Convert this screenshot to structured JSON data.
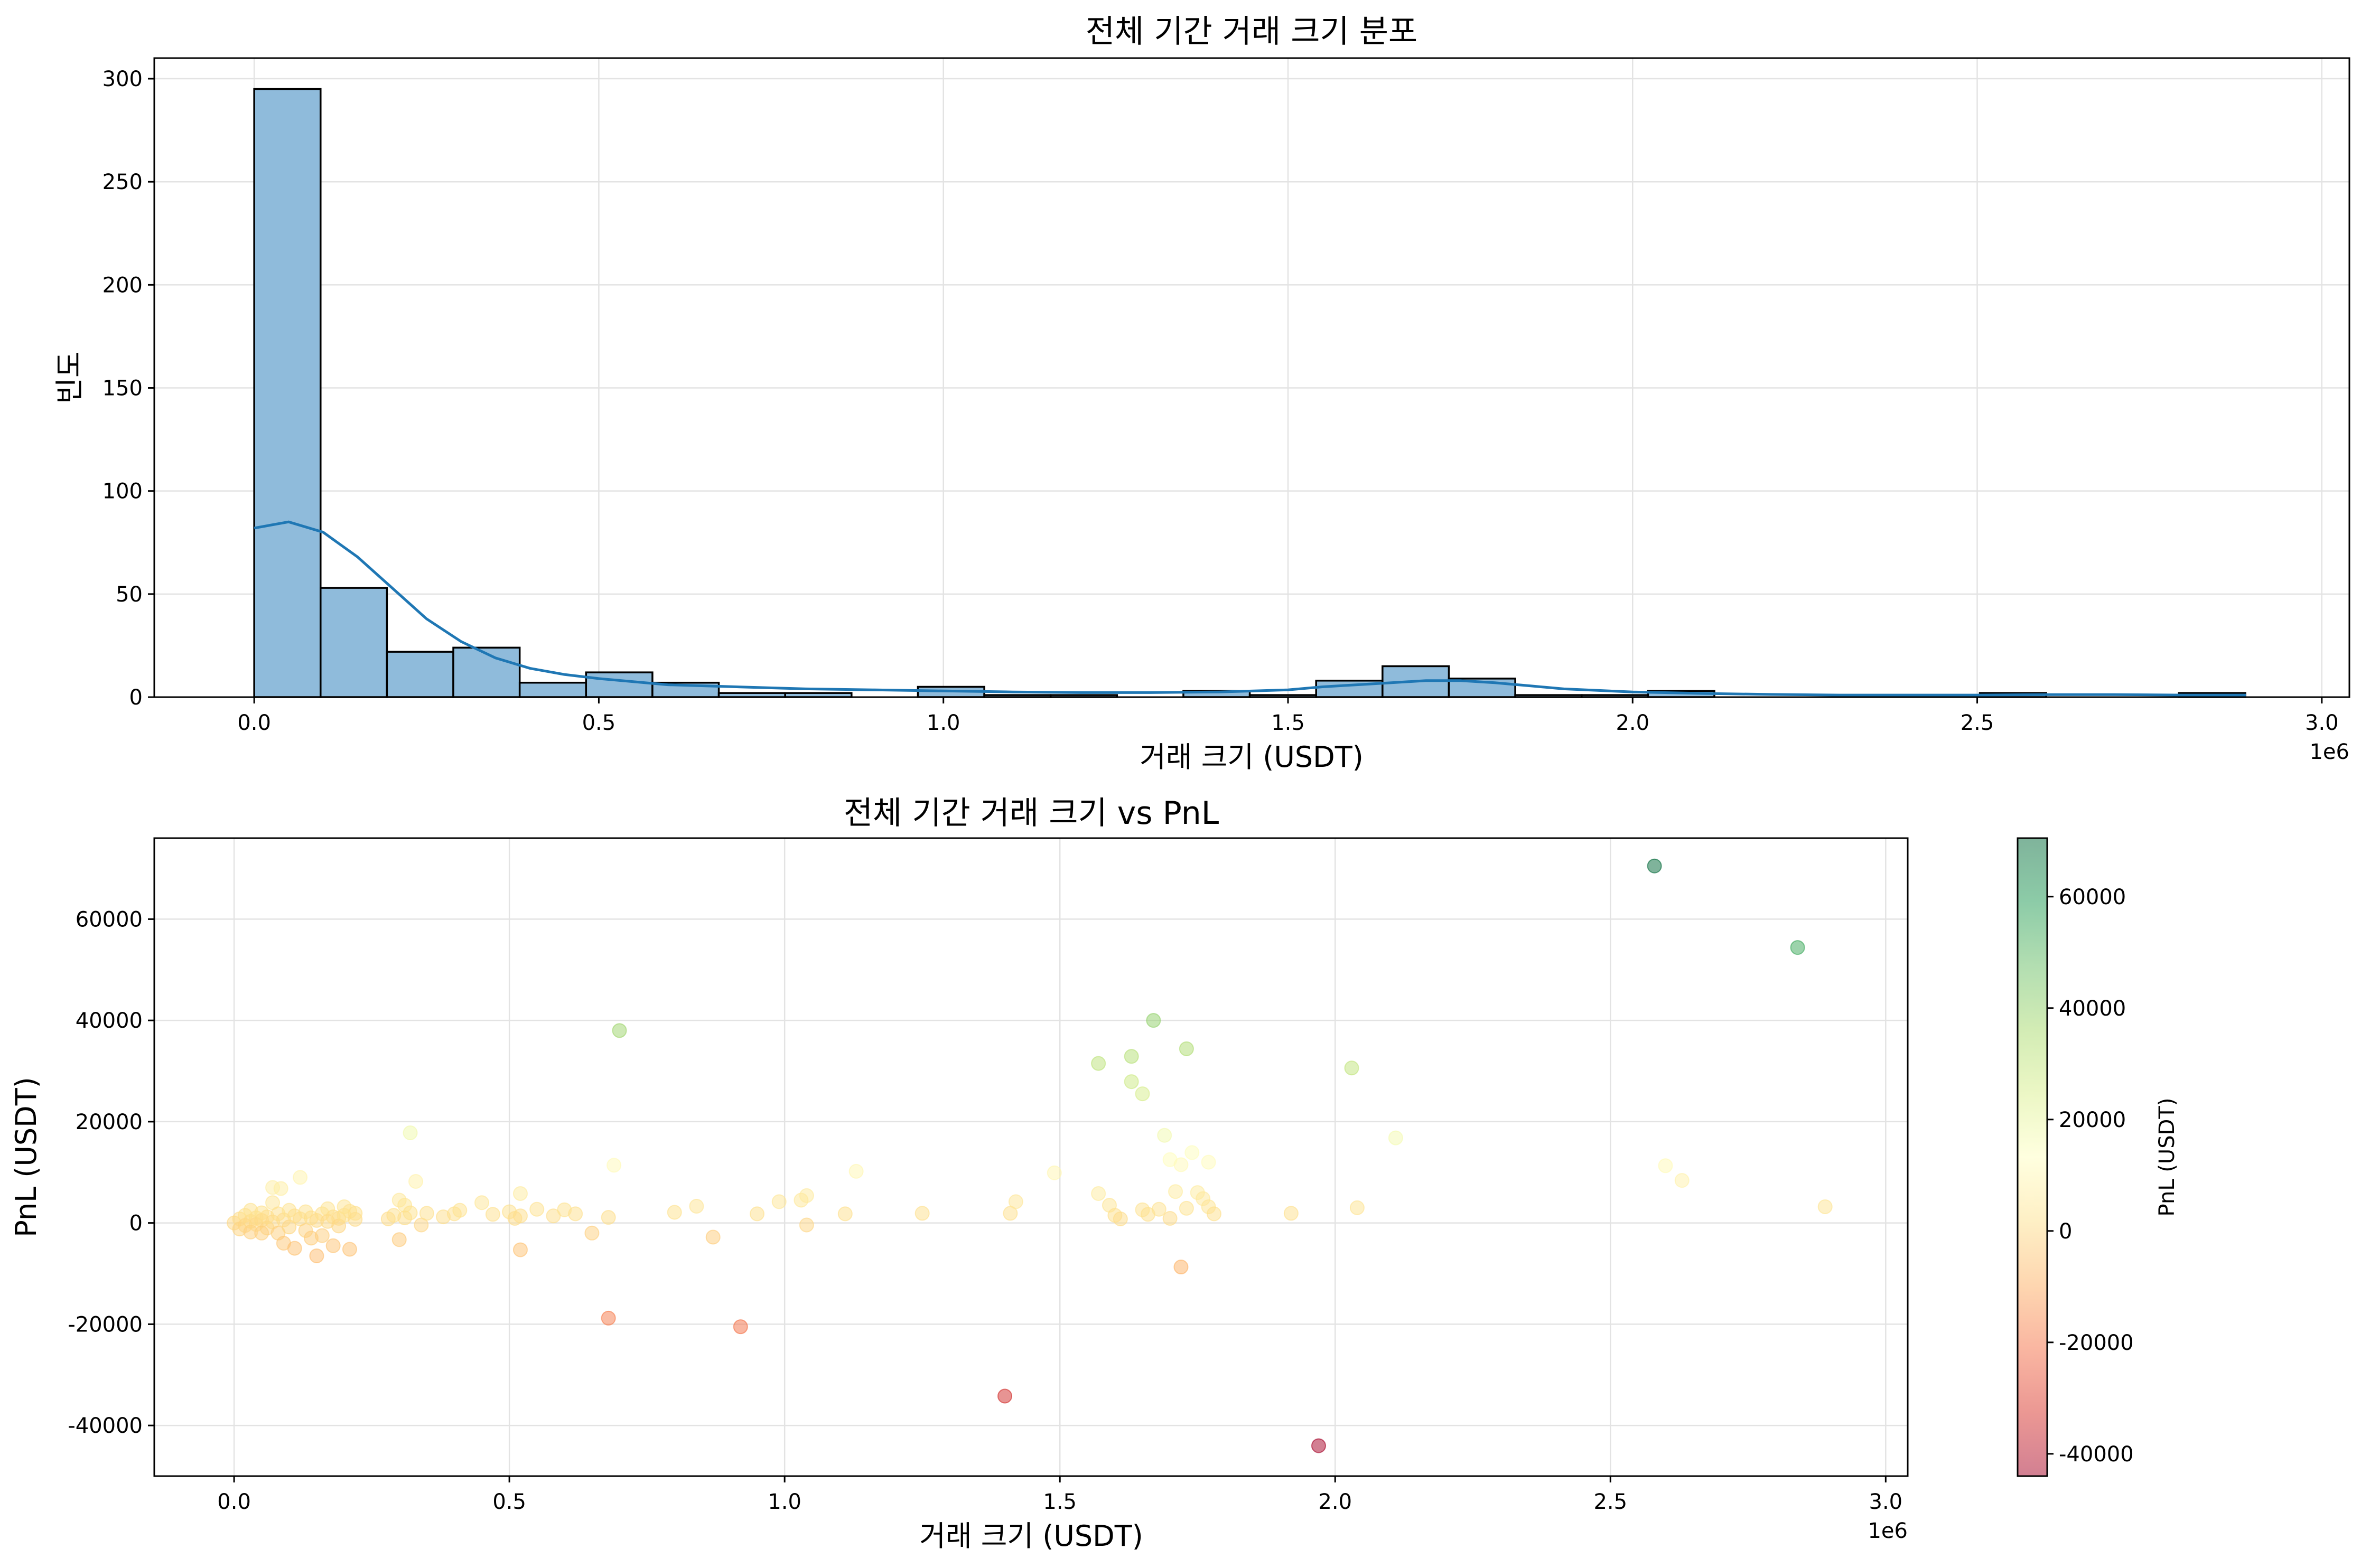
{
  "chart_data": [
    {
      "type": "bar",
      "title": "전체 기간 거래 크기 분포",
      "xlabel": "거래 크기 (USDT)",
      "ylabel": "빈도",
      "x_offset_label": "1e6",
      "x_scale": 1000000,
      "xlim": [
        -0.145,
        3.04
      ],
      "ylim": [
        0,
        310
      ],
      "xticks": [
        0.0,
        0.5,
        1.0,
        1.5,
        2.0,
        2.5,
        3.0
      ],
      "xtick_labels": [
        "0.0",
        "0.5",
        "1.0",
        "1.5",
        "2.0",
        "2.5",
        "3.0"
      ],
      "yticks": [
        0,
        50,
        100,
        150,
        200,
        250,
        300
      ],
      "ytick_labels": [
        "0",
        "50",
        "100",
        "150",
        "200",
        "250",
        "300"
      ],
      "grid": true,
      "bar_color": "#8fbbdb",
      "edge_color": "#000000",
      "bins": [
        {
          "x0": 0.0,
          "x1": 0.0963,
          "count": 295
        },
        {
          "x0": 0.0963,
          "x1": 0.1926,
          "count": 53
        },
        {
          "x0": 0.1926,
          "x1": 0.2889,
          "count": 22
        },
        {
          "x0": 0.2889,
          "x1": 0.3852,
          "count": 24
        },
        {
          "x0": 0.3852,
          "x1": 0.4815,
          "count": 7
        },
        {
          "x0": 0.4815,
          "x1": 0.5778,
          "count": 12
        },
        {
          "x0": 0.5778,
          "x1": 0.6741,
          "count": 7
        },
        {
          "x0": 0.6741,
          "x1": 0.7704,
          "count": 2
        },
        {
          "x0": 0.7704,
          "x1": 0.8667,
          "count": 2
        },
        {
          "x0": 0.8667,
          "x1": 0.963,
          "count": 0
        },
        {
          "x0": 0.963,
          "x1": 1.0593,
          "count": 5
        },
        {
          "x0": 1.0593,
          "x1": 1.1556,
          "count": 1
        },
        {
          "x0": 1.1556,
          "x1": 1.2519,
          "count": 1
        },
        {
          "x0": 1.2519,
          "x1": 1.3482,
          "count": 0
        },
        {
          "x0": 1.3482,
          "x1": 1.4445,
          "count": 3
        },
        {
          "x0": 1.4445,
          "x1": 1.5408,
          "count": 1
        },
        {
          "x0": 1.5408,
          "x1": 1.6371,
          "count": 8
        },
        {
          "x0": 1.6371,
          "x1": 1.7334,
          "count": 15
        },
        {
          "x0": 1.7334,
          "x1": 1.8297,
          "count": 9
        },
        {
          "x0": 1.8297,
          "x1": 1.926,
          "count": 1
        },
        {
          "x0": 1.926,
          "x1": 2.0223,
          "count": 1
        },
        {
          "x0": 2.0223,
          "x1": 2.1186,
          "count": 3
        },
        {
          "x0": 2.1186,
          "x1": 2.2149,
          "count": 0
        },
        {
          "x0": 2.2149,
          "x1": 2.3112,
          "count": 0
        },
        {
          "x0": 2.3112,
          "x1": 2.4075,
          "count": 0
        },
        {
          "x0": 2.4075,
          "x1": 2.5038,
          "count": 0
        },
        {
          "x0": 2.5038,
          "x1": 2.6001,
          "count": 2
        },
        {
          "x0": 2.6001,
          "x1": 2.6964,
          "count": 0
        },
        {
          "x0": 2.6964,
          "x1": 2.7927,
          "count": 0
        },
        {
          "x0": 2.7927,
          "x1": 2.889,
          "count": 2
        }
      ],
      "kde": {
        "color": "#1f77b4",
        "x": [
          0.0,
          0.05,
          0.1,
          0.15,
          0.2,
          0.25,
          0.3,
          0.35,
          0.4,
          0.45,
          0.5,
          0.6,
          0.7,
          0.8,
          0.9,
          1.0,
          1.1,
          1.2,
          1.3,
          1.4,
          1.5,
          1.55,
          1.6,
          1.65,
          1.7,
          1.75,
          1.8,
          1.85,
          1.9,
          2.0,
          2.1,
          2.2,
          2.3,
          2.4,
          2.5,
          2.6,
          2.7,
          2.8,
          2.89
        ],
        "y": [
          82,
          85,
          80,
          68,
          53,
          38,
          27,
          19,
          14,
          11,
          9,
          6,
          5,
          4,
          3.5,
          3,
          2.5,
          2.2,
          2.2,
          2.5,
          3.5,
          5,
          6,
          7,
          8,
          8,
          7,
          5.5,
          4,
          2.5,
          1.8,
          1.3,
          1,
          1,
          1,
          1.2,
          1.2,
          1,
          1
        ]
      }
    },
    {
      "type": "scatter",
      "title": "전체 기간 거래 크기 vs PnL",
      "xlabel": "거래 크기 (USDT)",
      "ylabel": "PnL (USDT)",
      "x_offset_label": "1e6",
      "x_scale": 1000000,
      "xlim": [
        -0.145,
        3.04
      ],
      "ylim": [
        -50000,
        76000
      ],
      "xticks": [
        0.0,
        0.5,
        1.0,
        1.5,
        2.0,
        2.5,
        3.0
      ],
      "xtick_labels": [
        "0.0",
        "0.5",
        "1.0",
        "1.5",
        "2.0",
        "2.5",
        "3.0"
      ],
      "yticks": [
        -40000,
        -20000,
        0,
        20000,
        40000,
        60000
      ],
      "ytick_labels": [
        "-40000",
        "-20000",
        "0",
        "20000",
        "40000",
        "60000"
      ],
      "grid": true,
      "colormap": "RdYlGn",
      "color_value": "pnl",
      "clim": [
        -44000,
        70500
      ],
      "colorbar": {
        "label": "PnL (USDT)",
        "ticks": [
          -40000,
          -20000,
          0,
          20000,
          40000,
          60000
        ],
        "tick_labels": [
          "-40000",
          "-20000",
          "0",
          "20000",
          "40000",
          "60000"
        ]
      },
      "points": [
        [
          0.0,
          0
        ],
        [
          0.01,
          800
        ],
        [
          0.01,
          -1200
        ],
        [
          0.02,
          1500
        ],
        [
          0.02,
          -500
        ],
        [
          0.03,
          300
        ],
        [
          0.03,
          -1800
        ],
        [
          0.04,
          1000
        ],
        [
          0.04,
          -300
        ],
        [
          0.05,
          2000
        ],
        [
          0.05,
          500
        ],
        [
          0.06,
          -1000
        ],
        [
          0.06,
          1200
        ],
        [
          0.07,
          4000
        ],
        [
          0.07,
          200
        ],
        [
          0.08,
          -2000
        ],
        [
          0.08,
          1800
        ],
        [
          0.09,
          600
        ],
        [
          0.09,
          -4000
        ],
        [
          0.1,
          2500
        ],
        [
          0.1,
          -800
        ],
        [
          0.11,
          1400
        ],
        [
          0.11,
          -5000
        ],
        [
          0.12,
          800
        ],
        [
          0.12,
          9000
        ],
        [
          0.13,
          2200
        ],
        [
          0.13,
          -1500
        ],
        [
          0.14,
          1000
        ],
        [
          0.14,
          -3000
        ],
        [
          0.15,
          500
        ],
        [
          0.15,
          -6500
        ],
        [
          0.16,
          1800
        ],
        [
          0.16,
          -2500
        ],
        [
          0.17,
          2800
        ],
        [
          0.17,
          300
        ],
        [
          0.18,
          -4500
        ],
        [
          0.18,
          1200
        ],
        [
          0.19,
          900
        ],
        [
          0.19,
          -600
        ],
        [
          0.2,
          3200
        ],
        [
          0.2,
          1500
        ],
        [
          0.21,
          -5200
        ],
        [
          0.21,
          2300
        ],
        [
          0.22,
          700
        ],
        [
          0.22,
          1900
        ],
        [
          0.07,
          7000
        ],
        [
          0.085,
          6800
        ],
        [
          0.03,
          2500
        ],
        [
          0.05,
          -2000
        ],
        [
          0.28,
          800
        ],
        [
          0.29,
          1500
        ],
        [
          0.3,
          4500
        ],
        [
          0.3,
          -3300
        ],
        [
          0.31,
          3500
        ],
        [
          0.31,
          1000
        ],
        [
          0.32,
          2000
        ],
        [
          0.32,
          17800
        ],
        [
          0.33,
          8200
        ],
        [
          0.34,
          -400
        ],
        [
          0.35,
          1900
        ],
        [
          0.38,
          1200
        ],
        [
          0.4,
          1800
        ],
        [
          0.41,
          2500
        ],
        [
          0.45,
          4000
        ],
        [
          0.47,
          1700
        ],
        [
          0.5,
          2200
        ],
        [
          0.51,
          900
        ],
        [
          0.52,
          -5300
        ],
        [
          0.52,
          1400
        ],
        [
          0.52,
          5800
        ],
        [
          0.55,
          2700
        ],
        [
          0.58,
          1400
        ],
        [
          0.6,
          2600
        ],
        [
          0.62,
          1800
        ],
        [
          0.65,
          -2000
        ],
        [
          0.68,
          1100
        ],
        [
          0.69,
          11400
        ],
        [
          0.68,
          -18800
        ],
        [
          0.7,
          38000
        ],
        [
          0.8,
          2100
        ],
        [
          0.84,
          3300
        ],
        [
          0.87,
          -2800
        ],
        [
          0.92,
          -20500
        ],
        [
          0.95,
          1800
        ],
        [
          0.99,
          4200
        ],
        [
          1.03,
          4500
        ],
        [
          1.04,
          -400
        ],
        [
          1.04,
          5400
        ],
        [
          1.11,
          1800
        ],
        [
          1.13,
          10200
        ],
        [
          1.25,
          1900
        ],
        [
          1.4,
          -34200
        ],
        [
          1.41,
          1900
        ],
        [
          1.42,
          4200
        ],
        [
          1.49,
          9900
        ],
        [
          1.57,
          5800
        ],
        [
          1.57,
          31500
        ],
        [
          1.59,
          3500
        ],
        [
          1.6,
          1500
        ],
        [
          1.61,
          800
        ],
        [
          1.63,
          32900
        ],
        [
          1.63,
          27900
        ],
        [
          1.65,
          25500
        ],
        [
          1.65,
          2600
        ],
        [
          1.66,
          1700
        ],
        [
          1.67,
          40000
        ],
        [
          1.68,
          2700
        ],
        [
          1.69,
          17300
        ],
        [
          1.7,
          12500
        ],
        [
          1.7,
          900
        ],
        [
          1.71,
          6200
        ],
        [
          1.72,
          11500
        ],
        [
          1.72,
          -8700
        ],
        [
          1.73,
          34400
        ],
        [
          1.73,
          2900
        ],
        [
          1.74,
          13900
        ],
        [
          1.75,
          6000
        ],
        [
          1.76,
          4800
        ],
        [
          1.77,
          3200
        ],
        [
          1.77,
          12000
        ],
        [
          1.78,
          1800
        ],
        [
          1.92,
          1900
        ],
        [
          1.97,
          -44000
        ],
        [
          2.03,
          30600
        ],
        [
          2.04,
          3000
        ],
        [
          2.11,
          16800
        ],
        [
          2.58,
          70500
        ],
        [
          2.6,
          11300
        ],
        [
          2.63,
          8400
        ],
        [
          2.84,
          54400
        ],
        [
          2.89,
          3200
        ]
      ]
    }
  ]
}
